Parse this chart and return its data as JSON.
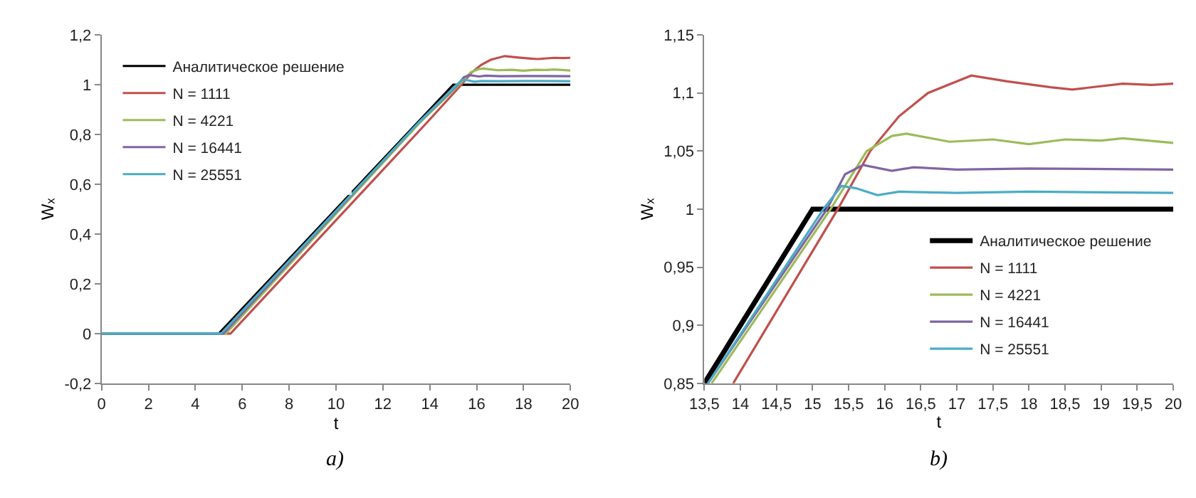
{
  "chart_data": [
    {
      "type": "line",
      "xlabel": "t",
      "ylabel": "Wₓ",
      "xlim": [
        0,
        20
      ],
      "xticks": [
        0,
        2,
        4,
        6,
        8,
        10,
        12,
        14,
        16,
        18,
        20
      ],
      "ylim": [
        -0.2,
        1.2
      ],
      "yticks": [
        {
          "value": -0.2,
          "label": "-0,2"
        },
        0,
        {
          "value": 0.2,
          "label": "0,2"
        },
        {
          "value": 0.4,
          "label": "0,4"
        },
        {
          "value": 0.6,
          "label": "0,6"
        },
        {
          "value": 0.8,
          "label": "0,8"
        },
        1,
        {
          "value": 1.2,
          "label": "1,2"
        }
      ],
      "legend": "top left",
      "annotations": [
        "a)"
      ],
      "series": [
        {
          "name": "Аналитическое решение",
          "color": "#000000",
          "x": [
            0,
            5,
            15,
            20
          ],
          "values": [
            0,
            0,
            1,
            1
          ]
        },
        {
          "name": "N = 1111",
          "color": "#c0504d",
          "x": [
            0,
            5.5,
            13.9,
            15.35,
            15.8,
            16.2,
            16.6,
            17.2,
            17.7,
            18.3,
            18.6,
            19.3,
            19.7,
            20
          ],
          "values": [
            0,
            0,
            0.85,
            1,
            1.05,
            1.08,
            1.1,
            1.115,
            1.11,
            1.105,
            1.103,
            1.108,
            1.107,
            1.108
          ]
        },
        {
          "name": "N = 4221",
          "color": "#9bbb59",
          "x": [
            0,
            5.3,
            13.6,
            15.25,
            15.75,
            16.1,
            16.3,
            16.9,
            17.5,
            18,
            18.5,
            19,
            19.3,
            20
          ],
          "values": [
            0,
            0,
            0.85,
            1,
            1.05,
            1.063,
            1.065,
            1.058,
            1.06,
            1.056,
            1.06,
            1.059,
            1.061,
            1.057
          ]
        },
        {
          "name": "N = 16441",
          "color": "#8064a2",
          "x": [
            0,
            5.2,
            13.55,
            15.2,
            15.45,
            15.7,
            16.1,
            16.4,
            17,
            18,
            20
          ],
          "values": [
            0,
            0,
            0.85,
            1,
            1.03,
            1.038,
            1.033,
            1.036,
            1.034,
            1.035,
            1.034
          ]
        },
        {
          "name": "N = 25551",
          "color": "#4bacc6",
          "x": [
            0,
            5.1,
            13.55,
            15.15,
            15.4,
            15.6,
            15.9,
            16.2,
            17,
            18,
            20
          ],
          "values": [
            0,
            0,
            0.85,
            1,
            1.02,
            1.018,
            1.012,
            1.015,
            1.014,
            1.015,
            1.014
          ]
        }
      ]
    },
    {
      "type": "line",
      "xlabel": "t",
      "ylabel": "Wₓ",
      "xlim": [
        13.5,
        20
      ],
      "xticks": [
        {
          "value": 13.5,
          "label": "13,5"
        },
        14,
        {
          "value": 14.5,
          "label": "14,5"
        },
        15,
        {
          "value": 15.5,
          "label": "15,5"
        },
        16,
        {
          "value": 16.5,
          "label": "16,5"
        },
        17,
        {
          "value": 17.5,
          "label": "17,5"
        },
        18,
        {
          "value": 18.5,
          "label": "18,5"
        },
        19,
        {
          "value": 19.5,
          "label": "19,5"
        },
        20
      ],
      "ylim": [
        0.85,
        1.15
      ],
      "yticks": [
        {
          "value": 0.85,
          "label": "0,85"
        },
        {
          "value": 0.9,
          "label": "0,9"
        },
        {
          "value": 0.95,
          "label": "0,95"
        },
        1,
        {
          "value": 1.05,
          "label": "1,05"
        },
        {
          "value": 1.1,
          "label": "1,1"
        },
        {
          "value": 1.15,
          "label": "1,15"
        }
      ],
      "legend": "bottom right",
      "annotations": [
        "b)"
      ],
      "series": [
        {
          "name": "Аналитическое решение",
          "color": "#000000",
          "x": [
            13.5,
            15,
            20
          ],
          "values": [
            0.85,
            1,
            1
          ]
        },
        {
          "name": "N = 1111",
          "color": "#c0504d",
          "x": [
            13.9,
            15.35,
            15.8,
            16.2,
            16.6,
            17.2,
            17.7,
            18.3,
            18.6,
            19.3,
            19.7,
            20
          ],
          "values": [
            0.85,
            1,
            1.05,
            1.08,
            1.1,
            1.115,
            1.11,
            1.105,
            1.103,
            1.108,
            1.107,
            1.108
          ]
        },
        {
          "name": "N = 4221",
          "color": "#9bbb59",
          "x": [
            13.6,
            15.25,
            15.75,
            16.1,
            16.3,
            16.9,
            17.5,
            18,
            18.5,
            19,
            19.3,
            20
          ],
          "values": [
            0.85,
            1,
            1.05,
            1.063,
            1.065,
            1.058,
            1.06,
            1.056,
            1.06,
            1.059,
            1.061,
            1.057
          ]
        },
        {
          "name": "N = 16441",
          "color": "#8064a2",
          "x": [
            13.55,
            15.2,
            15.45,
            15.7,
            16.1,
            16.4,
            17,
            18,
            20
          ],
          "values": [
            0.85,
            1,
            1.03,
            1.038,
            1.033,
            1.036,
            1.034,
            1.035,
            1.034
          ]
        },
        {
          "name": "N = 25551",
          "color": "#4bacc6",
          "x": [
            13.55,
            15.15,
            15.4,
            15.6,
            15.9,
            16.2,
            17,
            18,
            20
          ],
          "values": [
            0.85,
            1,
            1.02,
            1.018,
            1.012,
            1.015,
            1.014,
            1.015,
            1.014
          ]
        }
      ]
    }
  ]
}
